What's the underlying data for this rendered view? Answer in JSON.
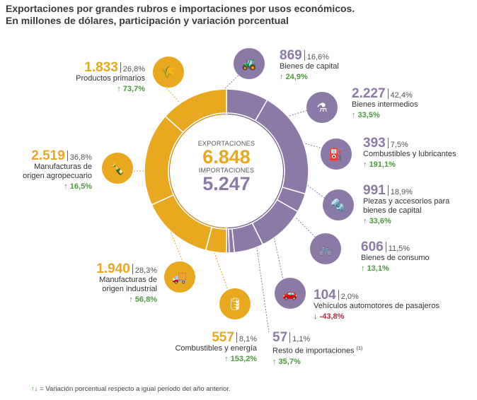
{
  "title_line1": "Exportaciones por grandes rubros e importaciones por usos económicos.",
  "title_line2": "En millones de dólares, participación y variación porcentual",
  "center": {
    "exp_label": "EXPORTACIONES",
    "exp_value": "6.848",
    "imp_label": "IMPORTACIONES",
    "imp_value": "5.247"
  },
  "ring": {
    "left_text": "EXPORTACIONES",
    "right_text": "IMPORTACIONES"
  },
  "colors": {
    "export": "#e8a920",
    "export_dark": "#c98b13",
    "import": "#8c7aa6",
    "import_dark": "#6f5c8c",
    "up": "#4c9a3c",
    "down": "#b22d44"
  },
  "chart_data": {
    "type": "pie",
    "total_exports": 6848,
    "total_imports": 5247,
    "exports": [
      {
        "name": "Productos primarios",
        "value": 1833,
        "share": "26,8%",
        "change": "73,7%",
        "direction": "up",
        "icon": "wheat-icon"
      },
      {
        "name": "Manufacturas de origen agropecuario",
        "value": 2519,
        "share": "36,8%",
        "change": "16,5%",
        "direction": "up",
        "icon": "bottle-icon"
      },
      {
        "name": "Manufacturas de origen industrial",
        "value": 1940,
        "share": "28,3%",
        "change": "56,8%",
        "direction": "up",
        "icon": "truck-icon"
      },
      {
        "name": "Combustibles y energía",
        "value": 557,
        "share": "8,1%",
        "change": "153,2%",
        "direction": "up",
        "icon": "oil-barrel-icon"
      }
    ],
    "imports": [
      {
        "name": "Bienes de capital",
        "value": 869,
        "share": "16,6%",
        "change": "24,9%",
        "direction": "up",
        "icon": "tractor-icon"
      },
      {
        "name": "Bienes intermedios",
        "value": 2227,
        "share": "42,4%",
        "change": "33,5%",
        "direction": "up",
        "icon": "flask-icon"
      },
      {
        "name": "Combustibles y lubricantes",
        "value": 393,
        "share": "7,5%",
        "change": "191,1%",
        "direction": "up",
        "icon": "jerrycan-icon"
      },
      {
        "name": "Piezas y accesorios para bienes de capital",
        "value": 991,
        "share": "18,9%",
        "change": "33,6%",
        "direction": "up",
        "icon": "screw-icon"
      },
      {
        "name": "Bienes de consumo",
        "value": 606,
        "share": "11,5%",
        "change": "13,1%",
        "direction": "up",
        "icon": "bicycle-icon"
      },
      {
        "name": "Vehículos automotores de pasajeros",
        "value": 104,
        "share": "2,0%",
        "change": "-43,8%",
        "direction": "down",
        "icon": "car-icon"
      },
      {
        "name": "Resto de importaciones",
        "value": 57,
        "share": "1,1%",
        "change": "35,7%",
        "direction": "up",
        "icon": "",
        "footnote": "(1)"
      }
    ]
  },
  "labels": {
    "exp": [
      {
        "value": "1.833",
        "share": "26,8%",
        "desc1": "Productos primarios",
        "desc2": "",
        "chg": "73,7%"
      },
      {
        "value": "2.519",
        "share": "36,8%",
        "desc1": "Manufacturas de",
        "desc2": "origen agropecuario",
        "chg": "16,5%"
      },
      {
        "value": "1.940",
        "share": "28,3%",
        "desc1": "Manufacturas de",
        "desc2": "origen industrial",
        "chg": "56,8%"
      },
      {
        "value": "557",
        "share": "8,1%",
        "desc1": "Combustibles y energía",
        "desc2": "",
        "chg": "153,2%"
      }
    ],
    "imp": [
      {
        "value": "869",
        "share": "16,6%",
        "desc1": "Bienes de capital",
        "desc2": "",
        "chg": "24,9%"
      },
      {
        "value": "2.227",
        "share": "42,4%",
        "desc1": "Bienes intermedios",
        "desc2": "",
        "chg": "33,5%"
      },
      {
        "value": "393",
        "share": "7,5%",
        "desc1": "Combustibles y lubricantes",
        "desc2": "",
        "chg": "191,1%"
      },
      {
        "value": "991",
        "share": "18,9%",
        "desc1": "Piezas y accesorios para",
        "desc2": "bienes de capital",
        "chg": "33,6%"
      },
      {
        "value": "606",
        "share": "11,5%",
        "desc1": "Bienes de consumo",
        "desc2": "",
        "chg": "13,1%"
      },
      {
        "value": "104",
        "share": "2,0%",
        "desc1": "Vehículos automotores de pasajeros",
        "desc2": "",
        "chg": "-43,8%"
      },
      {
        "value": "57",
        "share": "1,1%",
        "desc1": "Resto de importaciones",
        "desc2": "",
        "chg": "35,7%",
        "footnote": "(1)"
      }
    ]
  },
  "arrows": {
    "up": "↑",
    "down": "↓"
  },
  "footnote": "= Variación porcentual respecto a igual período del año anterior."
}
